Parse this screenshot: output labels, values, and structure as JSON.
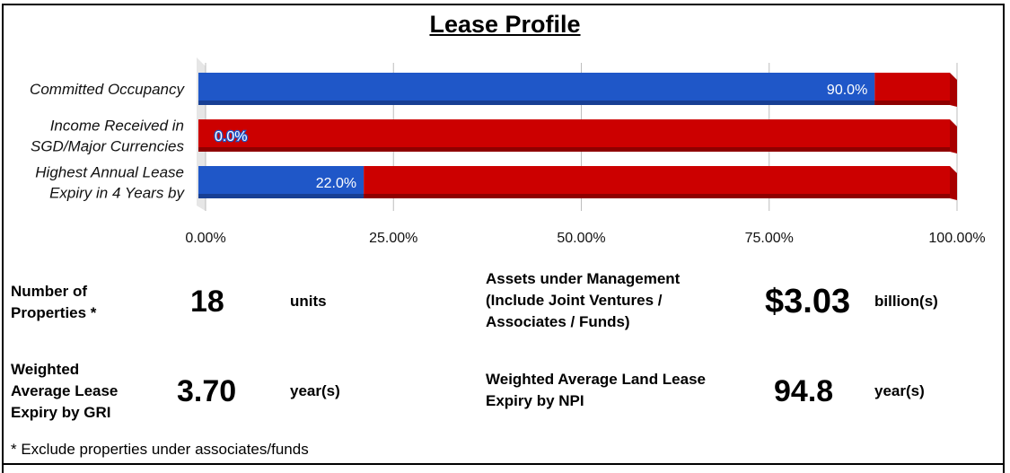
{
  "chart_data": {
    "type": "bar",
    "orientation": "horizontal",
    "stacked": true,
    "title": "Lease Profile",
    "categories": [
      [
        "Committed Occupancy"
      ],
      [
        "Income Received in",
        "SGD/Major Currencies"
      ],
      [
        "Highest Annual Lease",
        "Expiry in 4 Years by"
      ]
    ],
    "series": [
      {
        "values": [
          90.0,
          0.0,
          22.0
        ],
        "color": "#1f57c8",
        "labels": [
          "90.0%",
          "0.0%",
          "22.0%"
        ]
      },
      {
        "values": [
          10.0,
          100.0,
          78.0
        ],
        "color": "#cc0000"
      }
    ],
    "xlim": [
      0,
      100
    ],
    "xticks": [
      "0.00%",
      "25.00%",
      "50.00%",
      "75.00%",
      "100.00%"
    ],
    "grid": true
  },
  "stats": {
    "properties": {
      "label": [
        "Number of",
        "Properties *"
      ],
      "value": "18",
      "unit": "units"
    },
    "aum": {
      "label": [
        "Assets under Management",
        "(Include Joint Ventures /",
        "Associates / Funds)"
      ],
      "value": "$3.03",
      "unit": "billion(s)"
    },
    "wale": {
      "label": [
        "Weighted",
        "Average Lease",
        "Expiry by GRI"
      ],
      "value": "3.70",
      "unit": "year(s)"
    },
    "land_lease": {
      "label": [
        "Weighted Average Land Lease",
        "Expiry by NPI"
      ],
      "value": "94.8",
      "unit": "year(s)"
    }
  },
  "footnote": "* Exclude properties under associates/funds"
}
